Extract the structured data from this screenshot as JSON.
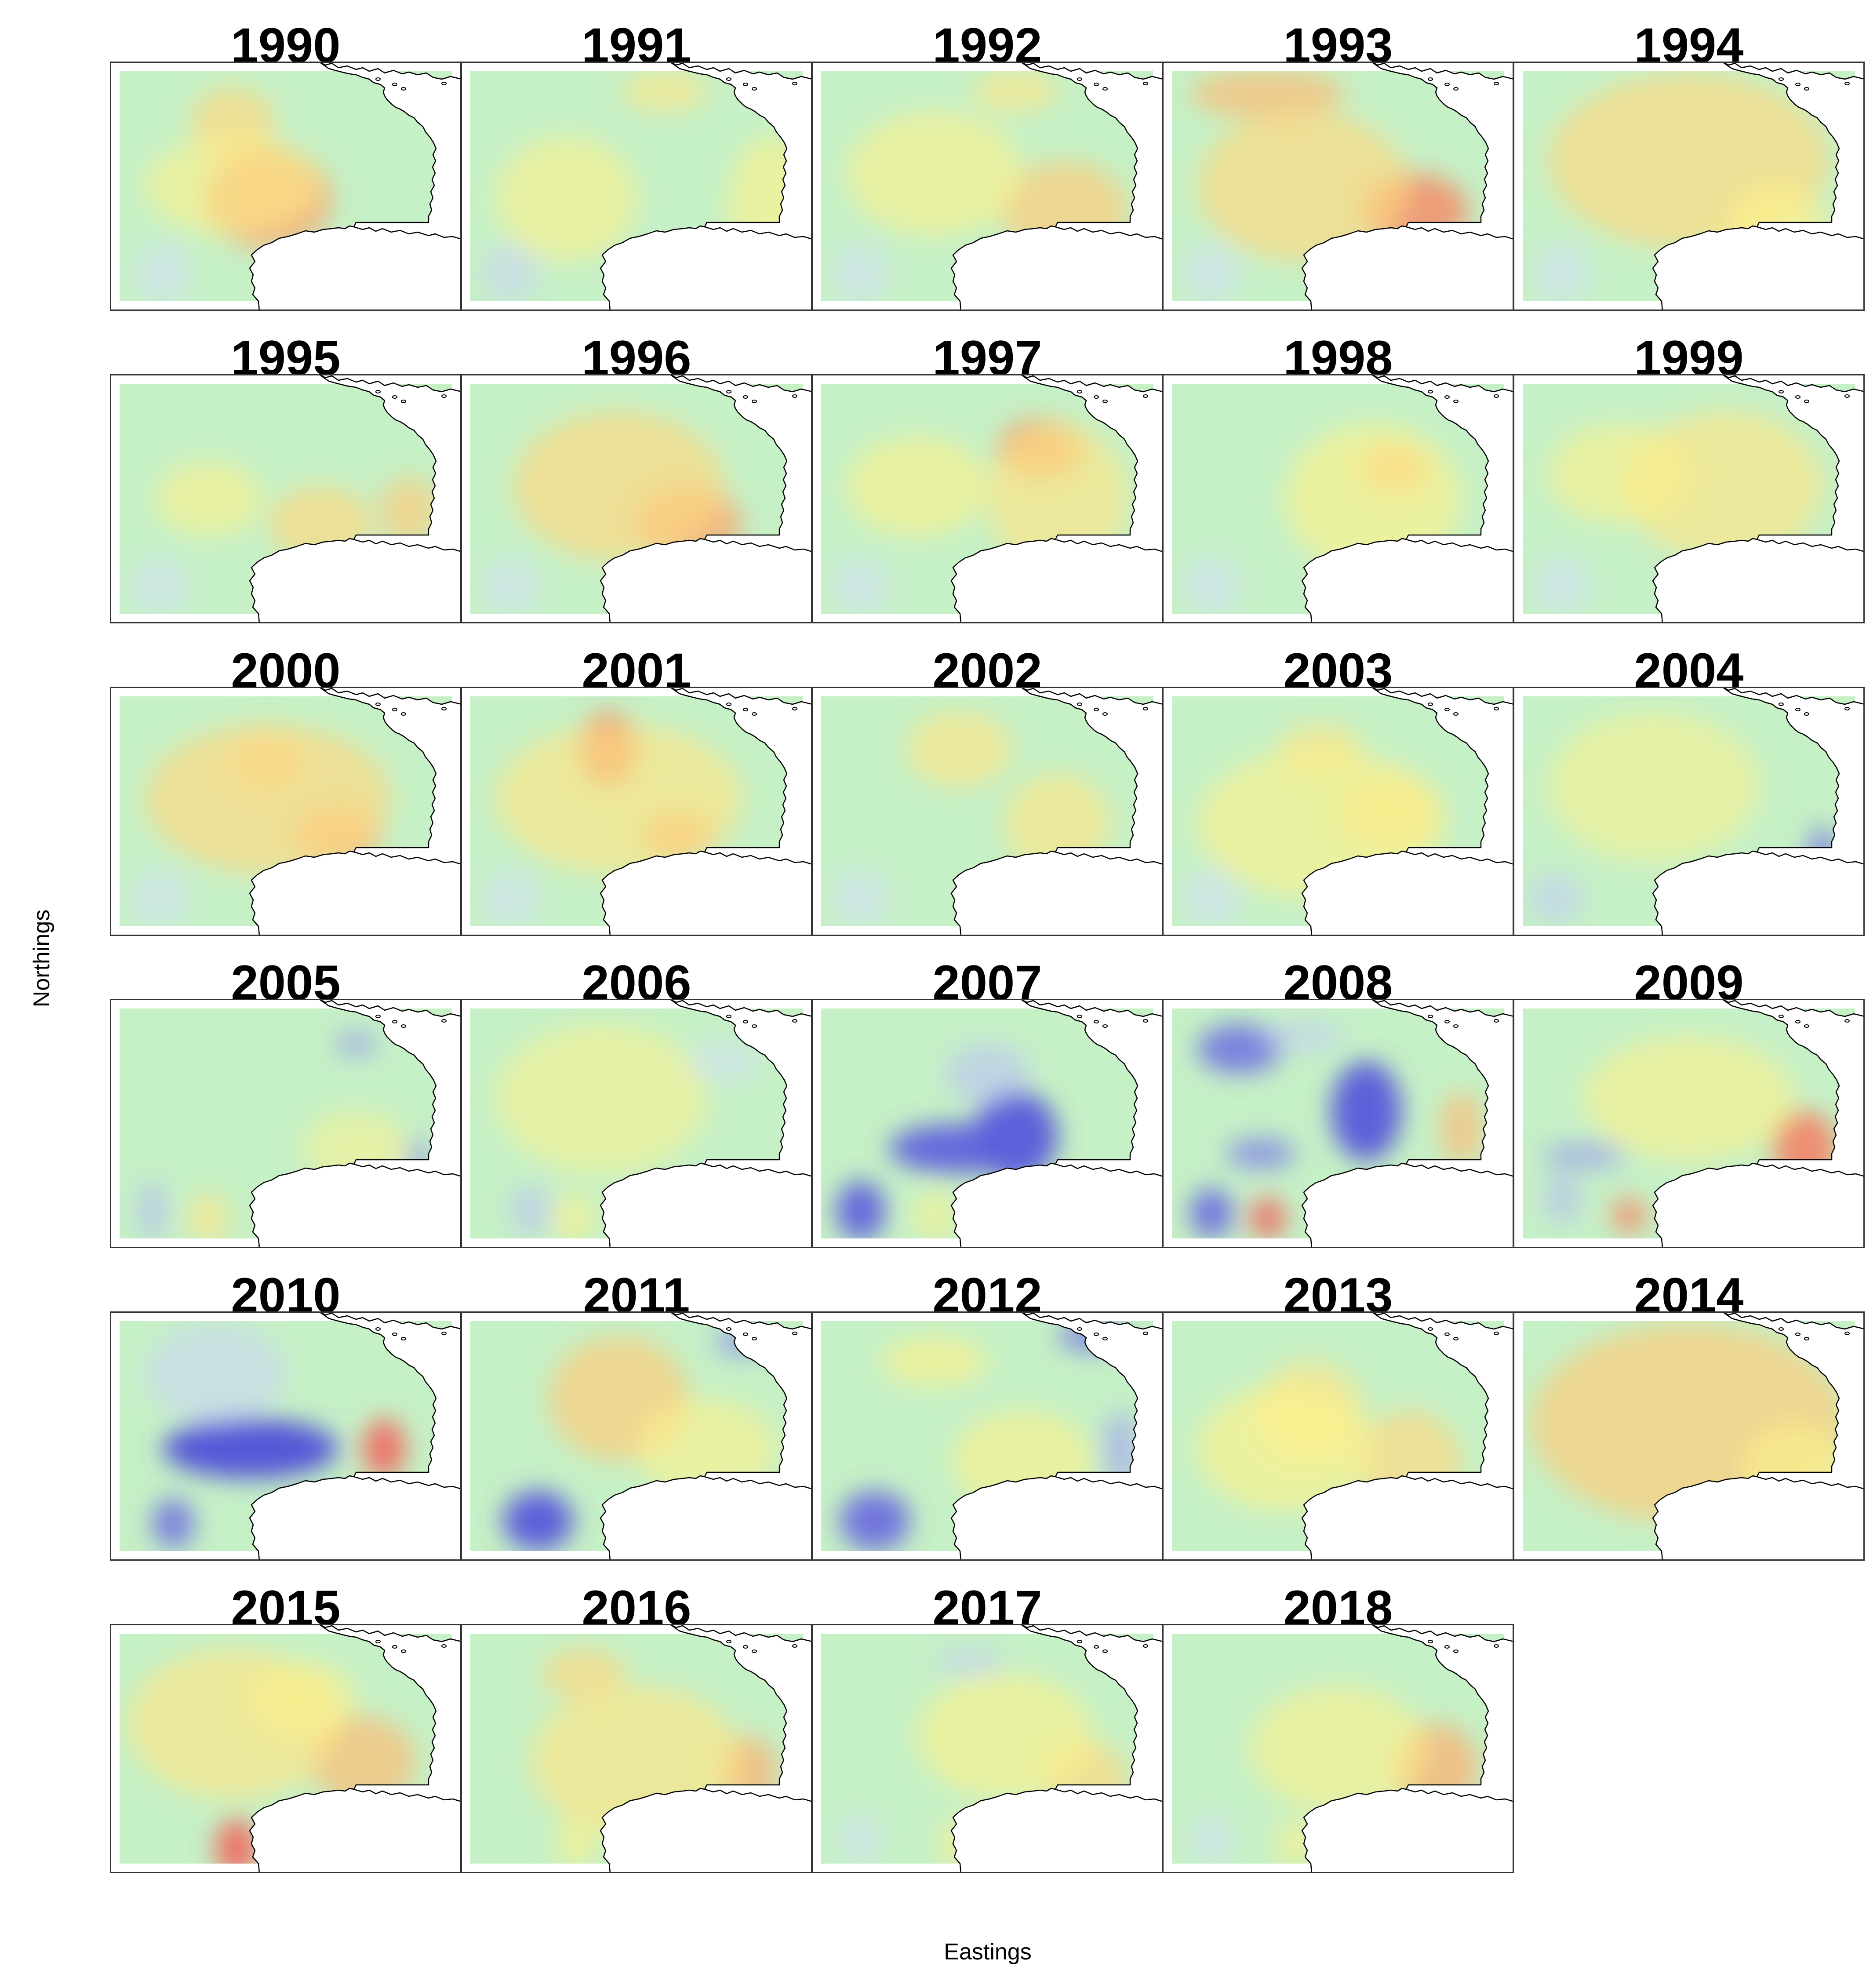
{
  "xlabel": "Eastings",
  "ylabel": "Northings",
  "colors": {
    "background": "#c6f0c6",
    "land": "#ffffff",
    "coast": "#000000",
    "warm_low": "#fff28a",
    "warm_high": "#f05a5a",
    "cool_low": "#dbe6ff",
    "cool_high": "#5050d8"
  },
  "panels": [
    {
      "year": "1990",
      "blobs": [
        [
          "w",
          0.5,
          0.35,
          0.25,
          0.12,
          0.15
        ],
        [
          "w",
          0.72,
          0.45,
          0.55,
          0.18,
          0.2
        ],
        [
          "w",
          0.3,
          0.35,
          0.5,
          0.25,
          0.2
        ],
        [
          "w",
          0.28,
          0.72,
          0.86,
          0.06,
          0.12
        ],
        [
          "c",
          0.2,
          0.15,
          0.85,
          0.08,
          0.12
        ]
      ]
    },
    {
      "year": "1991",
      "blobs": [
        [
          "w",
          0.45,
          0.58,
          0.12,
          0.12,
          0.08
        ],
        [
          "w",
          0.35,
          0.88,
          0.6,
          0.12,
          0.3
        ],
        [
          "w",
          0.3,
          0.3,
          0.55,
          0.2,
          0.25
        ],
        [
          "w",
          0.3,
          0.73,
          0.87,
          0.06,
          0.1
        ],
        [
          "c",
          0.25,
          0.14,
          0.85,
          0.08,
          0.12
        ]
      ]
    },
    {
      "year": "1992",
      "blobs": [
        [
          "w",
          0.45,
          0.58,
          0.12,
          0.12,
          0.08
        ],
        [
          "w",
          0.55,
          0.72,
          0.6,
          0.18,
          0.2
        ],
        [
          "w",
          0.3,
          0.35,
          0.45,
          0.25,
          0.25
        ],
        [
          "w",
          0.28,
          0.72,
          0.87,
          0.06,
          0.1
        ],
        [
          "c",
          0.2,
          0.14,
          0.85,
          0.08,
          0.12
        ]
      ]
    },
    {
      "year": "1993",
      "blobs": [
        [
          "w",
          0.6,
          0.3,
          0.13,
          0.22,
          0.1
        ],
        [
          "w",
          0.8,
          0.72,
          0.6,
          0.15,
          0.15
        ],
        [
          "w",
          0.5,
          0.4,
          0.5,
          0.3,
          0.3
        ],
        [
          "w",
          0.35,
          0.72,
          0.87,
          0.06,
          0.1
        ],
        [
          "c",
          0.2,
          0.14,
          0.85,
          0.08,
          0.12
        ]
      ]
    },
    {
      "year": "1994",
      "blobs": [
        [
          "w",
          0.5,
          0.5,
          0.4,
          0.4,
          0.35
        ],
        [
          "w",
          0.4,
          0.75,
          0.7,
          0.15,
          0.2
        ],
        [
          "w",
          0.3,
          0.72,
          0.87,
          0.06,
          0.1
        ],
        [
          "c",
          0.2,
          0.14,
          0.85,
          0.08,
          0.12
        ]
      ]
    },
    {
      "year": "1995",
      "blobs": [
        [
          "w",
          0.55,
          0.85,
          0.55,
          0.08,
          0.14
        ],
        [
          "w",
          0.5,
          0.6,
          0.6,
          0.15,
          0.15
        ],
        [
          "w",
          0.3,
          0.28,
          0.5,
          0.15,
          0.15
        ],
        [
          "w",
          0.28,
          0.72,
          0.86,
          0.06,
          0.1
        ],
        [
          "c",
          0.2,
          0.14,
          0.85,
          0.08,
          0.12
        ]
      ]
    },
    {
      "year": "1996",
      "blobs": [
        [
          "w",
          0.7,
          0.65,
          0.6,
          0.15,
          0.15
        ],
        [
          "w",
          0.5,
          0.45,
          0.45,
          0.3,
          0.3
        ],
        [
          "w",
          0.4,
          0.72,
          0.88,
          0.06,
          0.1
        ],
        [
          "c",
          0.2,
          0.14,
          0.85,
          0.08,
          0.12
        ]
      ]
    },
    {
      "year": "1997",
      "blobs": [
        [
          "w",
          0.75,
          0.65,
          0.3,
          0.12,
          0.12
        ],
        [
          "w",
          0.45,
          0.7,
          0.5,
          0.2,
          0.3
        ],
        [
          "w",
          0.35,
          0.3,
          0.45,
          0.2,
          0.2
        ],
        [
          "w",
          0.4,
          0.72,
          0.88,
          0.06,
          0.1
        ],
        [
          "c",
          0.2,
          0.14,
          0.85,
          0.08,
          0.12
        ]
      ]
    },
    {
      "year": "1998",
      "blobs": [
        [
          "w",
          0.65,
          0.66,
          0.38,
          0.1,
          0.1
        ],
        [
          "w",
          0.4,
          0.6,
          0.5,
          0.25,
          0.3
        ],
        [
          "w",
          0.3,
          0.72,
          0.88,
          0.06,
          0.1
        ],
        [
          "c",
          0.2,
          0.14,
          0.85,
          0.08,
          0.12
        ]
      ]
    },
    {
      "year": "1999",
      "blobs": [
        [
          "w",
          0.45,
          0.6,
          0.45,
          0.28,
          0.3
        ],
        [
          "w",
          0.3,
          0.3,
          0.4,
          0.2,
          0.2
        ],
        [
          "w",
          0.35,
          0.72,
          0.88,
          0.06,
          0.1
        ],
        [
          "c",
          0.2,
          0.14,
          0.85,
          0.08,
          0.12
        ]
      ]
    },
    {
      "year": "2000",
      "blobs": [
        [
          "w",
          0.65,
          0.65,
          0.6,
          0.12,
          0.12
        ],
        [
          "w",
          0.5,
          0.45,
          0.3,
          0.1,
          0.12
        ],
        [
          "w",
          0.5,
          0.45,
          0.45,
          0.35,
          0.3
        ],
        [
          "w",
          0.4,
          0.72,
          0.88,
          0.06,
          0.1
        ],
        [
          "c",
          0.2,
          0.14,
          0.85,
          0.08,
          0.12
        ]
      ]
    },
    {
      "year": "2001",
      "blobs": [
        [
          "w",
          0.85,
          0.42,
          0.25,
          0.08,
          0.15
        ],
        [
          "w",
          0.7,
          0.62,
          0.6,
          0.1,
          0.1
        ],
        [
          "w",
          0.45,
          0.45,
          0.45,
          0.35,
          0.3
        ],
        [
          "w",
          0.35,
          0.72,
          0.88,
          0.06,
          0.1
        ],
        [
          "c",
          0.2,
          0.14,
          0.85,
          0.08,
          0.12
        ]
      ]
    },
    {
      "year": "2002",
      "blobs": [
        [
          "w",
          0.45,
          0.42,
          0.25,
          0.15,
          0.15
        ],
        [
          "w",
          0.45,
          0.7,
          0.55,
          0.15,
          0.2
        ],
        [
          "w",
          0.35,
          0.72,
          0.88,
          0.06,
          0.1
        ],
        [
          "c",
          0.2,
          0.14,
          0.85,
          0.08,
          0.12
        ]
      ]
    },
    {
      "year": "2003",
      "blobs": [
        [
          "w",
          0.45,
          0.45,
          0.25,
          0.12,
          0.1
        ],
        [
          "w",
          0.45,
          0.65,
          0.5,
          0.15,
          0.15
        ],
        [
          "w",
          0.35,
          0.45,
          0.55,
          0.35,
          0.3
        ],
        [
          "w",
          0.35,
          0.72,
          0.88,
          0.06,
          0.1
        ],
        [
          "c",
          0.2,
          0.14,
          0.85,
          0.08,
          0.12
        ]
      ]
    },
    {
      "year": "2004",
      "blobs": [
        [
          "c",
          0.75,
          0.88,
          0.68,
          0.04,
          0.12
        ],
        [
          "c",
          0.3,
          0.12,
          0.85,
          0.08,
          0.1
        ],
        [
          "w",
          0.4,
          0.72,
          0.88,
          0.06,
          0.1
        ],
        [
          "w",
          0.2,
          0.4,
          0.4,
          0.3,
          0.3
        ]
      ]
    },
    {
      "year": "2005",
      "blobs": [
        [
          "c",
          0.55,
          0.7,
          0.18,
          0.06,
          0.05
        ],
        [
          "c",
          0.6,
          0.88,
          0.65,
          0.03,
          0.1
        ],
        [
          "c",
          0.4,
          0.12,
          0.85,
          0.04,
          0.12
        ],
        [
          "w",
          0.45,
          0.28,
          0.88,
          0.06,
          0.1
        ],
        [
          "w",
          0.15,
          0.7,
          0.6,
          0.15,
          0.15
        ]
      ]
    },
    {
      "year": "2006",
      "blobs": [
        [
          "c",
          0.35,
          0.2,
          0.85,
          0.06,
          0.1
        ],
        [
          "w",
          0.35,
          0.32,
          0.88,
          0.06,
          0.1
        ],
        [
          "w",
          0.2,
          0.4,
          0.4,
          0.3,
          0.3
        ],
        [
          "c",
          0.2,
          0.75,
          0.25,
          0.1,
          0.08
        ]
      ]
    },
    {
      "year": "2007",
      "blobs": [
        [
          "c",
          0.95,
          0.58,
          0.55,
          0.12,
          0.18
        ],
        [
          "c",
          0.9,
          0.42,
          0.6,
          0.2,
          0.1
        ],
        [
          "c",
          0.9,
          0.14,
          0.85,
          0.07,
          0.12
        ],
        [
          "c",
          0.35,
          0.5,
          0.3,
          0.12,
          0.12
        ],
        [
          "w",
          0.3,
          0.35,
          0.87,
          0.06,
          0.1
        ]
      ]
    },
    {
      "year": "2008",
      "blobs": [
        [
          "c",
          0.8,
          0.22,
          0.2,
          0.12,
          0.1
        ],
        [
          "c",
          0.95,
          0.58,
          0.45,
          0.1,
          0.2
        ],
        [
          "c",
          0.7,
          0.28,
          0.62,
          0.1,
          0.06
        ],
        [
          "c",
          0.85,
          0.14,
          0.86,
          0.06,
          0.1
        ],
        [
          "w",
          0.6,
          0.85,
          0.52,
          0.06,
          0.15
        ],
        [
          "w",
          0.95,
          0.3,
          0.88,
          0.05,
          0.08
        ],
        [
          "c",
          0.3,
          0.4,
          0.15,
          0.12,
          0.06
        ]
      ]
    },
    {
      "year": "2009",
      "blobs": [
        [
          "w",
          0.85,
          0.83,
          0.6,
          0.09,
          0.15
        ],
        [
          "c",
          0.55,
          0.2,
          0.63,
          0.12,
          0.05
        ],
        [
          "c",
          0.4,
          0.14,
          0.8,
          0.05,
          0.1
        ],
        [
          "w",
          0.8,
          0.33,
          0.87,
          0.05,
          0.07
        ],
        [
          "w",
          0.3,
          0.5,
          0.4,
          0.3,
          0.25
        ]
      ]
    },
    {
      "year": "2010",
      "blobs": [
        [
          "c",
          1.0,
          0.4,
          0.55,
          0.25,
          0.12
        ],
        [
          "w",
          0.95,
          0.78,
          0.55,
          0.06,
          0.12
        ],
        [
          "c",
          0.8,
          0.18,
          0.85,
          0.06,
          0.1
        ],
        [
          "c",
          0.25,
          0.3,
          0.25,
          0.2,
          0.2
        ]
      ]
    },
    {
      "year": "2011",
      "blobs": [
        [
          "c",
          0.95,
          0.22,
          0.84,
          0.1,
          0.12
        ],
        [
          "c",
          0.6,
          0.8,
          0.12,
          0.08,
          0.06
        ],
        [
          "w",
          0.55,
          0.45,
          0.35,
          0.2,
          0.25
        ],
        [
          "w",
          0.3,
          0.7,
          0.55,
          0.2,
          0.2
        ]
      ]
    },
    {
      "year": "2012",
      "blobs": [
        [
          "c",
          0.85,
          0.18,
          0.84,
          0.1,
          0.12
        ],
        [
          "c",
          0.75,
          0.8,
          0.1,
          0.1,
          0.06
        ],
        [
          "c",
          0.5,
          0.88,
          0.55,
          0.05,
          0.15
        ],
        [
          "w",
          0.4,
          0.35,
          0.2,
          0.15,
          0.1
        ],
        [
          "w",
          0.35,
          0.6,
          0.6,
          0.2,
          0.2
        ]
      ]
    },
    {
      "year": "2013",
      "blobs": [
        [
          "w",
          0.45,
          0.42,
          0.4,
          0.15,
          0.2
        ],
        [
          "w",
          0.5,
          0.7,
          0.6,
          0.15,
          0.2
        ],
        [
          "w",
          0.4,
          0.35,
          0.55,
          0.25,
          0.25
        ],
        [
          "w",
          0.35,
          0.72,
          0.87,
          0.06,
          0.1
        ]
      ]
    },
    {
      "year": "2014",
      "blobs": [
        [
          "w",
          0.55,
          0.5,
          0.45,
          0.45,
          0.4
        ],
        [
          "w",
          0.35,
          0.8,
          0.65,
          0.15,
          0.2
        ],
        [
          "w",
          0.3,
          0.72,
          0.88,
          0.06,
          0.1
        ]
      ]
    },
    {
      "year": "2015",
      "blobs": [
        [
          "w",
          0.95,
          0.36,
          0.9,
          0.06,
          0.12
        ],
        [
          "w",
          0.6,
          0.72,
          0.55,
          0.15,
          0.18
        ],
        [
          "w",
          0.45,
          0.35,
          0.4,
          0.3,
          0.3
        ],
        [
          "w",
          0.35,
          0.55,
          0.3,
          0.15,
          0.15
        ]
      ]
    },
    {
      "year": "2016",
      "blobs": [
        [
          "w",
          0.5,
          0.35,
          0.2,
          0.12,
          0.1
        ],
        [
          "w",
          0.65,
          0.82,
          0.6,
          0.08,
          0.15
        ],
        [
          "w",
          0.45,
          0.5,
          0.55,
          0.3,
          0.3
        ],
        [
          "w",
          0.35,
          0.33,
          0.88,
          0.06,
          0.1
        ]
      ]
    },
    {
      "year": "2017",
      "blobs": [
        [
          "w",
          0.5,
          0.78,
          0.62,
          0.12,
          0.15
        ],
        [
          "w",
          0.35,
          0.55,
          0.45,
          0.25,
          0.25
        ],
        [
          "c",
          0.3,
          0.45,
          0.15,
          0.1,
          0.05
        ],
        [
          "w",
          0.3,
          0.42,
          0.88,
          0.06,
          0.1
        ],
        [
          "c",
          0.2,
          0.14,
          0.86,
          0.06,
          0.1
        ]
      ]
    },
    {
      "year": "2018",
      "blobs": [
        [
          "w",
          0.65,
          0.78,
          0.58,
          0.12,
          0.18
        ],
        [
          "w",
          0.3,
          0.5,
          0.5,
          0.25,
          0.25
        ],
        [
          "w",
          0.3,
          0.38,
          0.88,
          0.06,
          0.1
        ],
        [
          "c",
          0.2,
          0.14,
          0.86,
          0.06,
          0.1
        ]
      ]
    }
  ]
}
